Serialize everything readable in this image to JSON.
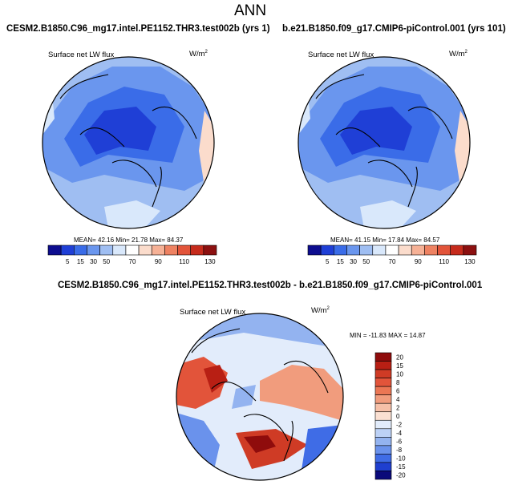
{
  "title": "ANN",
  "colors": {
    "abs": [
      "#0d0d8f",
      "#1f3fd6",
      "#3a6ce8",
      "#6a96ee",
      "#9fbef2",
      "#d9e8fb",
      "#ffffff",
      "#fbdccc",
      "#f6b196",
      "#ee8262",
      "#e2543a",
      "#c62b1c",
      "#8c1010"
    ],
    "diff": [
      "#0a0a7a",
      "#1f3fcf",
      "#3f6ce6",
      "#6a92ec",
      "#93b3f0",
      "#bcd1f6",
      "#e2ecfb",
      "#fbe0d2",
      "#f6c0a8",
      "#f19c7d",
      "#eb7654",
      "#e2543a",
      "#cf3b25",
      "#b81f14",
      "#8f0c0c"
    ]
  },
  "chart_data": [
    {
      "type": "heatmap",
      "id": "left",
      "case": "CESM2.B1850.C96_mg17.intel.PE1152.THR3.test002b (yrs 1)",
      "variable": "Surface net LW flux",
      "units_base": "W/m",
      "units_exp": "2",
      "stats": "MEAN=  42.16  Min=  21.78  Max=  84.37",
      "mean": 42.16,
      "min": 21.78,
      "max": 84.37,
      "colorbar_levels": [
        "5",
        "15",
        "30",
        "50",
        "70",
        "90",
        "110",
        "130"
      ]
    },
    {
      "type": "heatmap",
      "id": "right",
      "case": "b.e21.B1850.f09_g17.CMIP6-piControl.001 (yrs 101)",
      "variable": "Surface net LW flux",
      "units_base": "W/m",
      "units_exp": "2",
      "stats": "MEAN=  41.15  Min=  17.84  Max=  84.57",
      "mean": 41.15,
      "min": 17.84,
      "max": 84.57,
      "colorbar_levels": [
        "5",
        "15",
        "30",
        "50",
        "70",
        "90",
        "110",
        "130"
      ]
    },
    {
      "type": "heatmap",
      "id": "diff",
      "case": "CESM2.B1850.C96_mg17.intel.PE1152.THR3.test002b - b.e21.B1850.f09_g17.CMIP6-piControl.001",
      "variable": "Surface net LW flux",
      "units_base": "W/m",
      "units_exp": "2",
      "stats": "MIN = -11.83  MAX =  14.87",
      "min": -11.83,
      "max": 14.87,
      "colorbar_levels": [
        "20",
        "15",
        "10",
        "8",
        "6",
        "4",
        "2",
        "0",
        "-2",
        "-4",
        "-6",
        "-8",
        "-10",
        "-15",
        "-20"
      ]
    }
  ]
}
